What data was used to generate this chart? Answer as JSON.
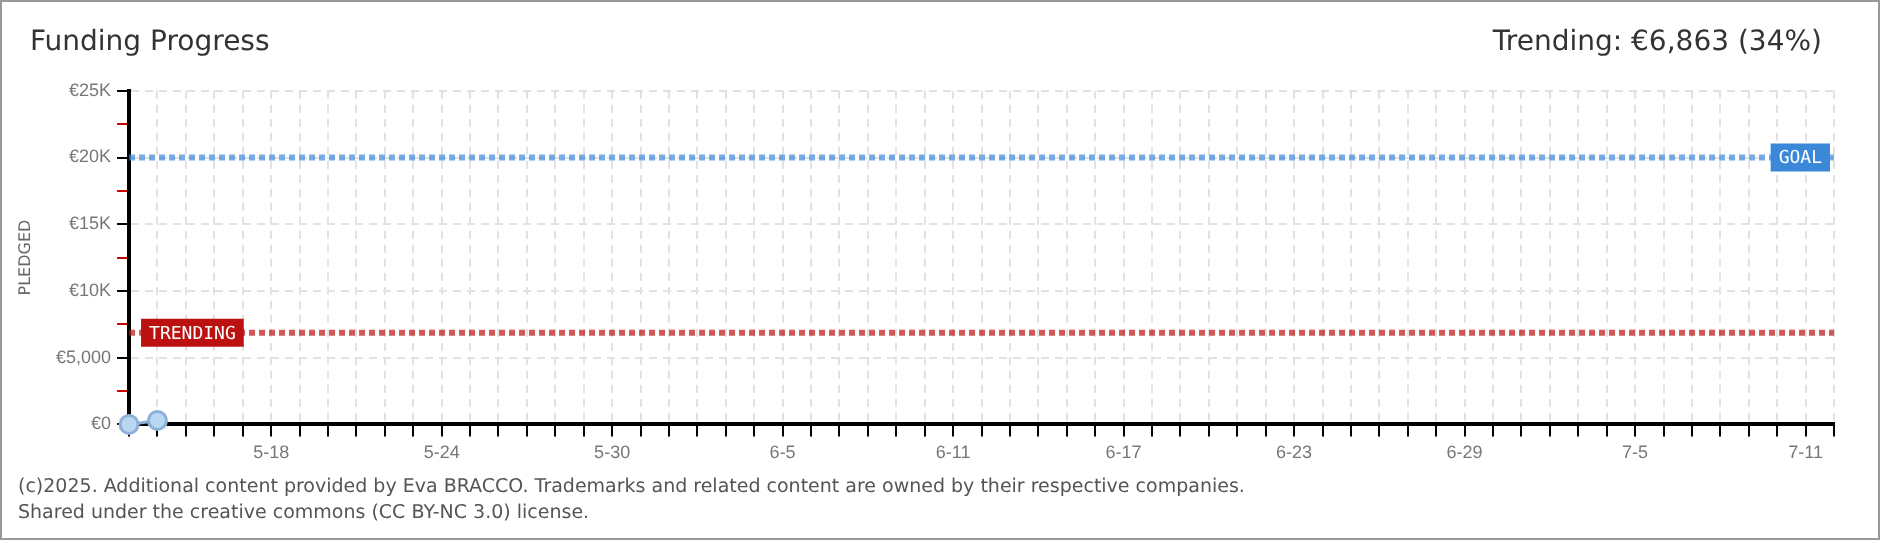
{
  "chart_data": {
    "type": "line",
    "title": "Funding Progress",
    "subtitle": "Trending: €6,863 (34%)",
    "ylabel": "PLEDGED",
    "x": [
      "--05-13",
      "--05-14"
    ],
    "series": [
      {
        "color": "#b9d6f3",
        "values": [
          0,
          300
        ]
      }
    ],
    "marker": "circle",
    "grid": true,
    "xlim": [
      "--05-13",
      "--07-12"
    ],
    "xticks": [
      {
        "value": "--05-13",
        "label": null
      },
      {
        "value": "--05-14",
        "label": null
      },
      {
        "value": "--05-15",
        "label": null
      },
      {
        "value": "--05-16",
        "label": null
      },
      {
        "value": "--05-17",
        "label": null
      },
      {
        "value": "--05-18",
        "label": "5-18"
      },
      {
        "value": "--05-19",
        "label": null
      },
      {
        "value": "--05-20",
        "label": null
      },
      {
        "value": "--05-21",
        "label": null
      },
      {
        "value": "--05-22",
        "label": null
      },
      {
        "value": "--05-23",
        "label": null
      },
      {
        "value": "--05-24",
        "label": "5-24"
      },
      {
        "value": "--05-25",
        "label": null
      },
      {
        "value": "--05-26",
        "label": null
      },
      {
        "value": "--05-27",
        "label": null
      },
      {
        "value": "--05-28",
        "label": null
      },
      {
        "value": "--05-29",
        "label": null
      },
      {
        "value": "--05-30",
        "label": "5-30"
      },
      {
        "value": "--05-31",
        "label": null
      },
      {
        "value": "--06-01",
        "label": null
      },
      {
        "value": "--06-02",
        "label": null
      },
      {
        "value": "--06-03",
        "label": null
      },
      {
        "value": "--06-04",
        "label": null
      },
      {
        "value": "--06-05",
        "label": "6-5"
      },
      {
        "value": "--06-06",
        "label": null
      },
      {
        "value": "--06-07",
        "label": null
      },
      {
        "value": "--06-08",
        "label": null
      },
      {
        "value": "--06-09",
        "label": null
      },
      {
        "value": "--06-10",
        "label": null
      },
      {
        "value": "--06-11",
        "label": "6-11"
      },
      {
        "value": "--06-12",
        "label": null
      },
      {
        "value": "--06-13",
        "label": null
      },
      {
        "value": "--06-14",
        "label": null
      },
      {
        "value": "--06-15",
        "label": null
      },
      {
        "value": "--06-16",
        "label": null
      },
      {
        "value": "--06-17",
        "label": "6-17"
      },
      {
        "value": "--06-18",
        "label": null
      },
      {
        "value": "--06-19",
        "label": null
      },
      {
        "value": "--06-20",
        "label": null
      },
      {
        "value": "--06-21",
        "label": null
      },
      {
        "value": "--06-22",
        "label": null
      },
      {
        "value": "--06-23",
        "label": "6-23"
      },
      {
        "value": "--06-24",
        "label": null
      },
      {
        "value": "--06-25",
        "label": null
      },
      {
        "value": "--06-26",
        "label": null
      },
      {
        "value": "--06-27",
        "label": null
      },
      {
        "value": "--06-28",
        "label": null
      },
      {
        "value": "--06-29",
        "label": "6-29"
      },
      {
        "value": "--06-30",
        "label": null
      },
      {
        "value": "--07-01",
        "label": null
      },
      {
        "value": "--07-02",
        "label": null
      },
      {
        "value": "--07-03",
        "label": null
      },
      {
        "value": "--07-04",
        "label": null
      },
      {
        "value": "--07-05",
        "label": "7-5"
      },
      {
        "value": "--07-06",
        "label": null
      },
      {
        "value": "--07-07",
        "label": null
      },
      {
        "value": "--07-08",
        "label": null
      },
      {
        "value": "--07-09",
        "label": null
      },
      {
        "value": "--07-10",
        "label": null
      },
      {
        "value": "--07-11",
        "label": "7-11"
      },
      {
        "value": "--07-12",
        "label": null
      }
    ],
    "ylim": [
      0,
      25000
    ],
    "yticks": [
      {
        "value": 0,
        "label": "€0"
      },
      {
        "value": 2500,
        "label": null
      },
      {
        "value": 5000,
        "label": "€5,000"
      },
      {
        "value": 7500,
        "label": null
      },
      {
        "value": 10000,
        "label": "€10K"
      },
      {
        "value": 12500,
        "label": null
      },
      {
        "value": 15000,
        "label": "€15K"
      },
      {
        "value": 17500,
        "label": null
      },
      {
        "value": 20000,
        "label": "€20K"
      },
      {
        "value": 22500,
        "label": null
      },
      {
        "value": 25000,
        "label": "€25K"
      }
    ],
    "ref_lines": [
      {
        "axis": "y",
        "value": 20000,
        "label": "GOAL",
        "color": "#3c88d8",
        "line_style": "dotted"
      },
      {
        "axis": "y",
        "value": 6863,
        "label": "TRENDING",
        "color": "#bb1111",
        "line_style": "dotted"
      }
    ],
    "annotations": [
      "(c)2025. Additional content provided by Eva BRACCO. Trademarks and related content are owned by their respective companies.",
      "Shared under the creative commons (CC BY-NC 3.0) license."
    ]
  }
}
